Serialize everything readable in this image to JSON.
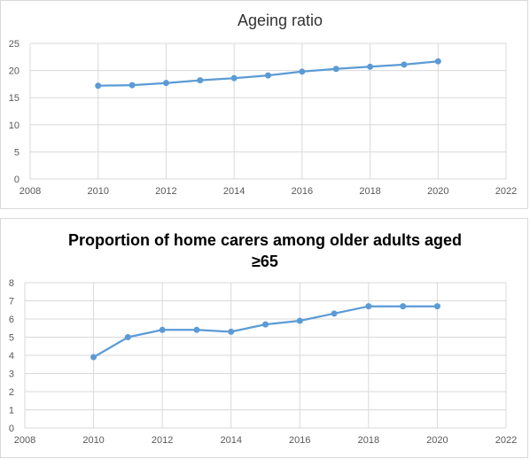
{
  "chart_data": [
    {
      "type": "line",
      "title": "Ageing ratio",
      "x": [
        2010,
        2011,
        2012,
        2013,
        2014,
        2015,
        2016,
        2017,
        2018,
        2019,
        2020
      ],
      "series": [
        {
          "values": [
            17.2,
            17.3,
            17.7,
            18.2,
            18.6,
            19.1,
            19.8,
            20.3,
            20.7,
            21.1,
            21.7
          ]
        }
      ],
      "xlim": [
        2008,
        2022
      ],
      "ylim": [
        0,
        25
      ],
      "xticks": [
        2008,
        2010,
        2012,
        2014,
        2016,
        2018,
        2020,
        2022
      ],
      "yticks": [
        0,
        5,
        10,
        15,
        20,
        25
      ],
      "grid": true,
      "legend": "none",
      "color": "#5b9bd5"
    },
    {
      "type": "line",
      "title": "Proportion of home carers among older adults aged",
      "title_line2": "≥65",
      "x": [
        2010,
        2011,
        2012,
        2013,
        2014,
        2015,
        2016,
        2017,
        2018,
        2019,
        2020
      ],
      "series": [
        {
          "values": [
            3.9,
            5.0,
            5.4,
            5.4,
            5.3,
            5.7,
            5.9,
            6.3,
            6.7,
            6.7,
            6.7
          ]
        }
      ],
      "xlim": [
        2008,
        2022
      ],
      "ylim": [
        0,
        8
      ],
      "xticks": [
        2008,
        2010,
        2012,
        2014,
        2016,
        2018,
        2020,
        2022
      ],
      "yticks": [
        0,
        1,
        2,
        3,
        4,
        5,
        6,
        7,
        8
      ],
      "grid": true,
      "legend": "none",
      "color": "#5b9bd5"
    }
  ]
}
